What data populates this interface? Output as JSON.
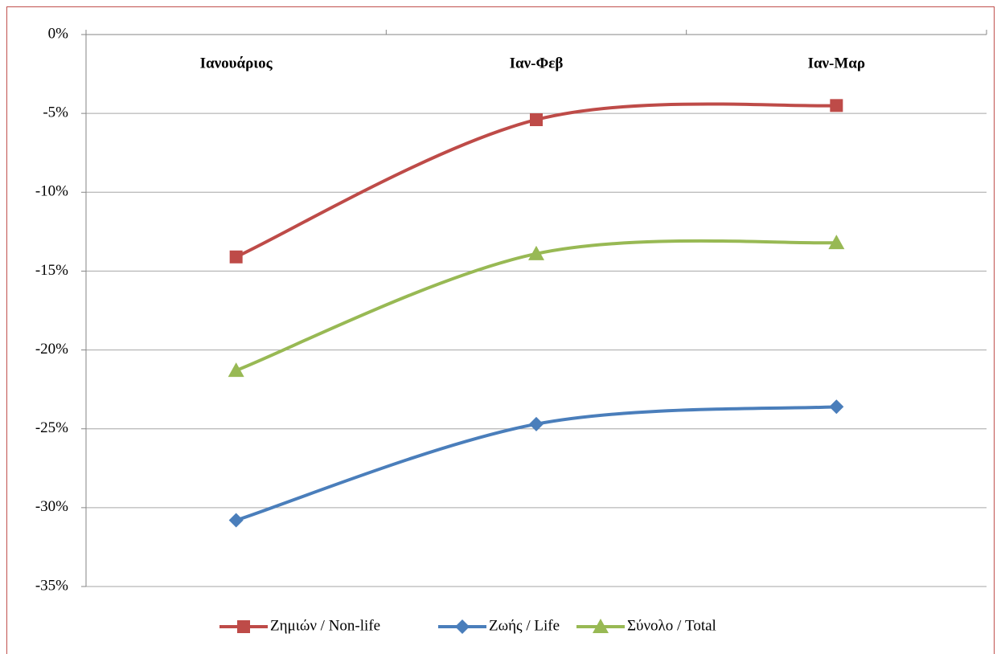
{
  "chart_data": {
    "type": "line",
    "categories": [
      "Ιανουάριος",
      "Ιαν-Φεβ",
      "Ιαν-Μαρ"
    ],
    "series": [
      {
        "name": "Ζημιών / Non-life",
        "color": "#be4b48",
        "marker": "square",
        "values": [
          -14.1,
          -5.4,
          -4.5
        ]
      },
      {
        "name": "Ζωής / Life",
        "color": "#4a7ebb",
        "marker": "diamond",
        "values": [
          -30.8,
          -24.7,
          -23.6
        ]
      },
      {
        "name": "Σύνολο / Total",
        "color": "#98b954",
        "marker": "triangle",
        "values": [
          -21.3,
          -13.9,
          -13.2
        ]
      }
    ],
    "ylim": [
      -35,
      0
    ],
    "yticks": [
      {
        "value": -35,
        "label": "-35%"
      },
      {
        "value": -30,
        "label": "-30%"
      },
      {
        "value": -25,
        "label": "-25%"
      },
      {
        "value": -20,
        "label": "-20%"
      },
      {
        "value": -15,
        "label": "-15%"
      },
      {
        "value": -10,
        "label": "-10%"
      },
      {
        "value": -5,
        "label": "-5%"
      },
      {
        "value": 0,
        "label": "0%"
      }
    ],
    "grid": true,
    "smooth": true,
    "legend": "bottom"
  }
}
